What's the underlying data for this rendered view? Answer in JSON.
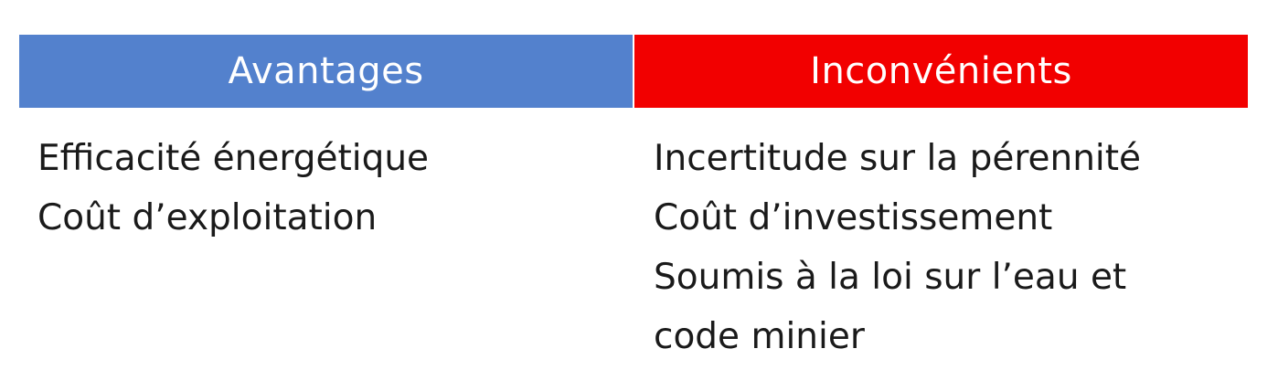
{
  "colors": {
    "advantages_header": "#5381cd",
    "disadvantages_header": "#f20000",
    "text": "#1a1a1a"
  },
  "advantages": {
    "title": "Avantages",
    "items": [
      "Efficacité énergétique",
      "Coût d’exploitation"
    ]
  },
  "disadvantages": {
    "title": "Inconvénients",
    "items": [
      "Incertitude sur la pérennité",
      "Coût d’investissement",
      "Soumis à la loi sur l’eau et",
      "code minier"
    ]
  }
}
